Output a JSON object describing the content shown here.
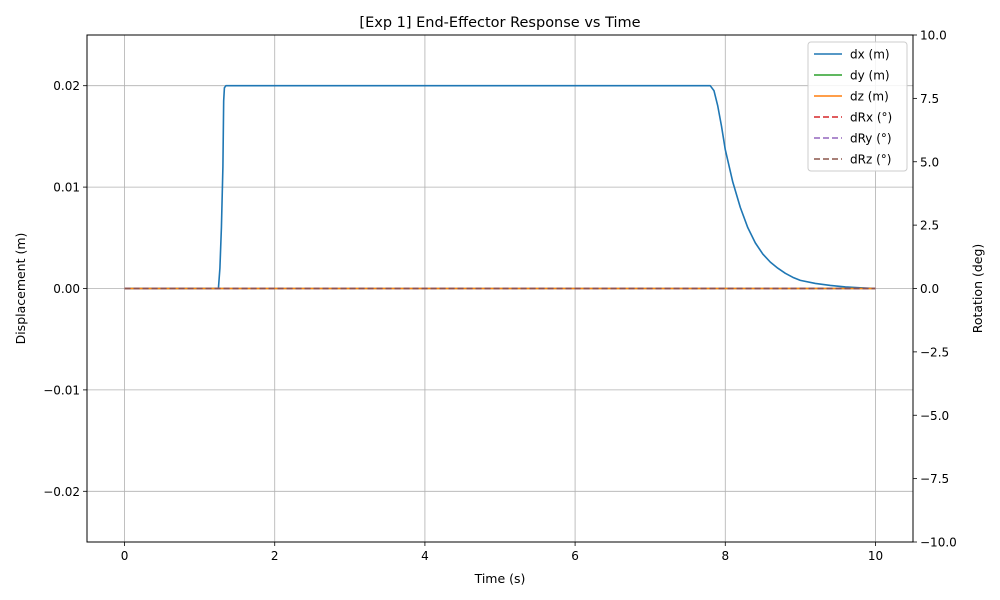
{
  "chart_data": {
    "type": "line",
    "title": "[Exp 1] End-Effector Response vs Time",
    "xlabel": "Time (s)",
    "ylabel": "Displacement (m)",
    "y2label": "Rotation (deg)",
    "xlim": [
      -0.5,
      10.5
    ],
    "ylim": [
      -0.025,
      0.025
    ],
    "y2lim": [
      -10,
      10
    ],
    "xticks": [
      0,
      2,
      4,
      6,
      8,
      10
    ],
    "xtick_labels": [
      "0",
      "2",
      "4",
      "6",
      "8",
      "10"
    ],
    "yticks": [
      -0.02,
      -0.01,
      0.0,
      0.01,
      0.02
    ],
    "ytick_labels": [
      "−0.02",
      "−0.01",
      "0.00",
      "0.01",
      "0.02"
    ],
    "y2ticks": [
      -10,
      -7.5,
      -5,
      -2.5,
      0,
      2.5,
      5,
      7.5,
      10
    ],
    "y2tick_labels": [
      "−10.0",
      "−7.5",
      "−5.0",
      "−2.5",
      "0.0",
      "2.5",
      "5.0",
      "7.5",
      "10.0"
    ],
    "grid": true,
    "legend_position": "top-right",
    "series": [
      {
        "name": "dx (m)",
        "axis": "left",
        "color": "#1f77b4",
        "style": "solid",
        "x": [
          0,
          1.0,
          1.25,
          1.27,
          1.29,
          1.31,
          1.32,
          1.33,
          1.35,
          2.0,
          4.0,
          6.0,
          7.8,
          7.85,
          7.9,
          7.95,
          8.0,
          8.1,
          8.2,
          8.3,
          8.4,
          8.5,
          8.6,
          8.7,
          8.8,
          8.9,
          9.0,
          9.2,
          9.4,
          9.6,
          9.8,
          10.0
        ],
        "y": [
          0,
          0,
          0,
          0.002,
          0.006,
          0.012,
          0.0185,
          0.0198,
          0.02,
          0.02,
          0.02,
          0.02,
          0.02,
          0.0195,
          0.018,
          0.016,
          0.0137,
          0.0105,
          0.008,
          0.006,
          0.0045,
          0.0034,
          0.0026,
          0.002,
          0.0015,
          0.0011,
          0.0008,
          0.0005,
          0.0003,
          0.00015,
          7e-05,
          0
        ]
      },
      {
        "name": "dy (m)",
        "axis": "left",
        "color": "#2ca02c",
        "style": "solid",
        "x": [
          0,
          10
        ],
        "y": [
          0,
          0
        ]
      },
      {
        "name": "dz (m)",
        "axis": "left",
        "color": "#ff7f0e",
        "style": "solid",
        "x": [
          0,
          10
        ],
        "y": [
          0,
          0
        ]
      },
      {
        "name": "dRx (°)",
        "axis": "right",
        "color": "#d62728",
        "style": "dashed",
        "x": [
          0,
          10
        ],
        "y": [
          0,
          0
        ]
      },
      {
        "name": "dRy (°)",
        "axis": "right",
        "color": "#9467bd",
        "style": "dashed",
        "x": [
          0,
          10
        ],
        "y": [
          0,
          0
        ]
      },
      {
        "name": "dRz (°)",
        "axis": "right",
        "color": "#8c564b",
        "style": "dashed",
        "x": [
          0,
          10
        ],
        "y": [
          0,
          0
        ]
      }
    ]
  }
}
